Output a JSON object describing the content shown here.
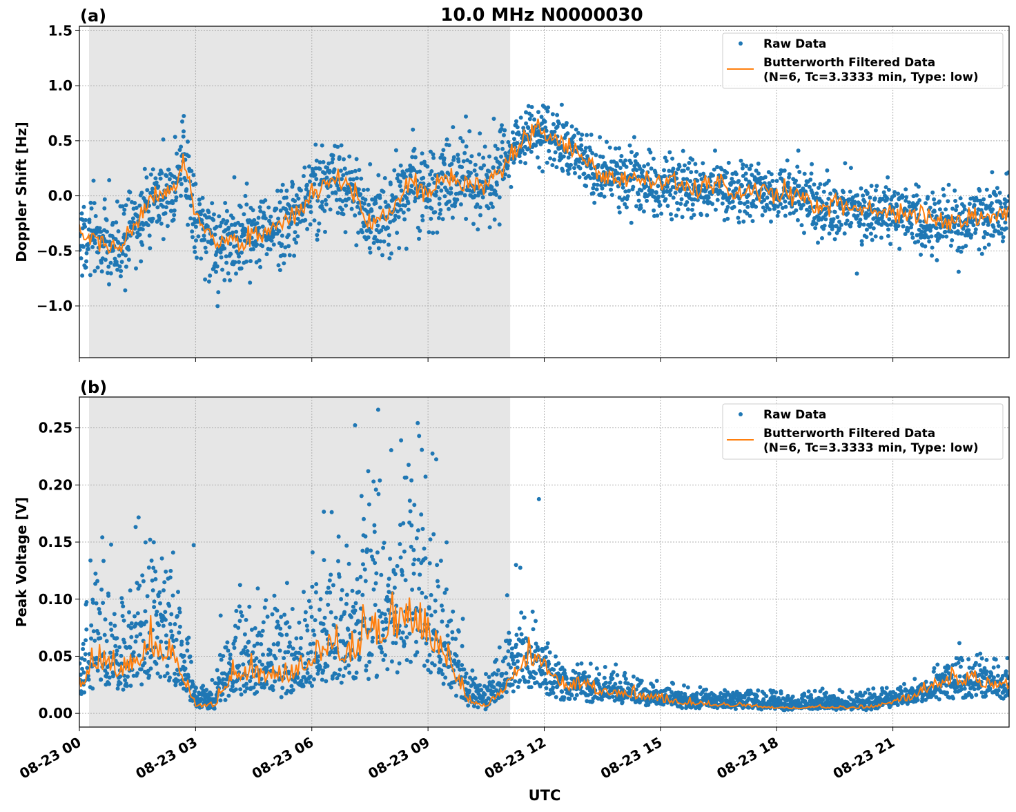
{
  "title": "10.0 MHz N0000030",
  "xlabel": "UTC",
  "x_tick_labels": [
    "08-23 00",
    "08-23 03",
    "08-23 06",
    "08-23 09",
    "08-23 12",
    "08-23 15",
    "08-23 18",
    "08-23 21"
  ],
  "colors": {
    "raw": "#1f77b4",
    "filtered": "#ff7f0e",
    "shade": "#e6e6e6"
  },
  "chart_data": [
    {
      "panel_label": "(a)",
      "type": "scatter+line",
      "ylabel": "Doppler Shift [Hz]",
      "xlim_hours": [
        0,
        24
      ],
      "ylim": [
        -1.47,
        1.54
      ],
      "y_ticks": [
        -1.0,
        -0.5,
        0.0,
        0.5,
        1.0,
        1.5
      ],
      "y_tick_labels": [
        "−1.0",
        "−0.5",
        "0.0",
        "0.5",
        "1.0",
        "1.5"
      ],
      "grid": true,
      "shaded_interval_hours": [
        0.25,
        11.12
      ],
      "legend": {
        "placement": "top-right",
        "entries": [
          "Raw Data",
          "Butterworth Filtered Data",
          "(N=6, Tc=3.3333 min, Type: low)"
        ]
      },
      "series": [
        {
          "name": "Butterworth Filtered Data",
          "x_hours": [
            0,
            0.5,
            1,
            1.5,
            2,
            2.5,
            2.7,
            3,
            3.5,
            4,
            4.5,
            5,
            5.5,
            6,
            6.5,
            7,
            7.5,
            8,
            8.5,
            9,
            9.5,
            10,
            10.5,
            11,
            11.5,
            12,
            12.5,
            13,
            13.5,
            14,
            14.5,
            15,
            15.5,
            16,
            16.5,
            17,
            17.5,
            18,
            18.5,
            19,
            19.5,
            20,
            20.5,
            21,
            21.5,
            22,
            22.5,
            23,
            23.5,
            24
          ],
          "y": [
            -0.35,
            -0.4,
            -0.5,
            -0.2,
            0.0,
            0.1,
            0.35,
            -0.2,
            -0.45,
            -0.4,
            -0.35,
            -0.3,
            -0.2,
            0.0,
            0.15,
            0.1,
            -0.3,
            -0.15,
            0.1,
            0.0,
            0.15,
            0.1,
            0.1,
            0.3,
            0.55,
            0.6,
            0.45,
            0.35,
            0.2,
            0.15,
            0.15,
            0.1,
            0.1,
            0.05,
            0.1,
            0.0,
            0.05,
            0.0,
            0.05,
            -0.1,
            -0.1,
            -0.1,
            -0.15,
            -0.15,
            -0.2,
            -0.2,
            -0.25,
            -0.2,
            -0.2,
            -0.15
          ]
        },
        {
          "name": "Raw Data",
          "spread": 0.25
        }
      ]
    },
    {
      "panel_label": "(b)",
      "type": "scatter+line",
      "ylabel": "Peak Voltage [V]",
      "xlim_hours": [
        0,
        24
      ],
      "ylim": [
        -0.012,
        0.277
      ],
      "y_ticks": [
        0.0,
        0.05,
        0.1,
        0.15,
        0.2,
        0.25
      ],
      "y_tick_labels": [
        "0.00",
        "0.05",
        "0.10",
        "0.15",
        "0.20",
        "0.25"
      ],
      "grid": true,
      "shaded_interval_hours": [
        0.25,
        11.12
      ],
      "legend": {
        "placement": "top-right",
        "entries": [
          "Raw Data",
          "Butterworth Filtered Data",
          "(N=6, Tc=3.3333 min, Type: low)"
        ]
      },
      "series": [
        {
          "name": "Butterworth Filtered Data",
          "x_hours": [
            0,
            0.5,
            1,
            1.5,
            2,
            2.5,
            3,
            3.5,
            4,
            4.5,
            5,
            5.5,
            6,
            6.5,
            7,
            7.5,
            8,
            8.5,
            9,
            9.5,
            10,
            10.5,
            11,
            11.5,
            12,
            12.5,
            13,
            13.5,
            14,
            14.5,
            15,
            15.5,
            16,
            16.5,
            17,
            17.5,
            18,
            18.5,
            19,
            19.5,
            20,
            20.5,
            21,
            21.5,
            22,
            22.5,
            23,
            23.5,
            24
          ],
          "y": [
            0.02,
            0.04,
            0.03,
            0.04,
            0.05,
            0.04,
            0.005,
            0.006,
            0.03,
            0.025,
            0.028,
            0.025,
            0.04,
            0.05,
            0.04,
            0.06,
            0.06,
            0.07,
            0.06,
            0.04,
            0.01,
            0.005,
            0.02,
            0.04,
            0.035,
            0.02,
            0.02,
            0.015,
            0.015,
            0.012,
            0.01,
            0.008,
            0.007,
            0.006,
            0.006,
            0.005,
            0.004,
            0.004,
            0.005,
            0.004,
            0.004,
            0.005,
            0.008,
            0.012,
            0.02,
            0.022,
            0.025,
            0.022,
            0.02
          ]
        },
        {
          "name": "Raw Data",
          "peak": 0.264
        }
      ]
    }
  ]
}
